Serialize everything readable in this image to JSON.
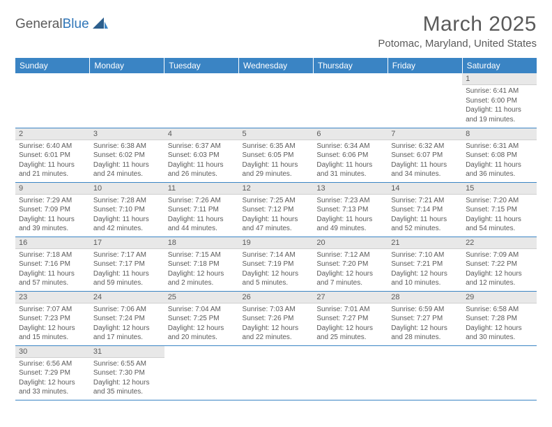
{
  "logo": {
    "text1": "General",
    "text2": "Blue"
  },
  "title": "March 2025",
  "location": "Potomac, Maryland, United States",
  "colors": {
    "header_bg": "#3a84c4",
    "header_text": "#ffffff",
    "daynum_bg": "#e8e8e8",
    "border": "#3a84c4",
    "text": "#5a5a5a",
    "logo_blue": "#3076b8"
  },
  "daynames": [
    "Sunday",
    "Monday",
    "Tuesday",
    "Wednesday",
    "Thursday",
    "Friday",
    "Saturday"
  ],
  "weeks": [
    [
      null,
      null,
      null,
      null,
      null,
      null,
      {
        "n": "1",
        "sunrise": "6:41 AM",
        "sunset": "6:00 PM",
        "day": "11 hours and 19 minutes."
      }
    ],
    [
      {
        "n": "2",
        "sunrise": "6:40 AM",
        "sunset": "6:01 PM",
        "day": "11 hours and 21 minutes."
      },
      {
        "n": "3",
        "sunrise": "6:38 AM",
        "sunset": "6:02 PM",
        "day": "11 hours and 24 minutes."
      },
      {
        "n": "4",
        "sunrise": "6:37 AM",
        "sunset": "6:03 PM",
        "day": "11 hours and 26 minutes."
      },
      {
        "n": "5",
        "sunrise": "6:35 AM",
        "sunset": "6:05 PM",
        "day": "11 hours and 29 minutes."
      },
      {
        "n": "6",
        "sunrise": "6:34 AM",
        "sunset": "6:06 PM",
        "day": "11 hours and 31 minutes."
      },
      {
        "n": "7",
        "sunrise": "6:32 AM",
        "sunset": "6:07 PM",
        "day": "11 hours and 34 minutes."
      },
      {
        "n": "8",
        "sunrise": "6:31 AM",
        "sunset": "6:08 PM",
        "day": "11 hours and 36 minutes."
      }
    ],
    [
      {
        "n": "9",
        "sunrise": "7:29 AM",
        "sunset": "7:09 PM",
        "day": "11 hours and 39 minutes."
      },
      {
        "n": "10",
        "sunrise": "7:28 AM",
        "sunset": "7:10 PM",
        "day": "11 hours and 42 minutes."
      },
      {
        "n": "11",
        "sunrise": "7:26 AM",
        "sunset": "7:11 PM",
        "day": "11 hours and 44 minutes."
      },
      {
        "n": "12",
        "sunrise": "7:25 AM",
        "sunset": "7:12 PM",
        "day": "11 hours and 47 minutes."
      },
      {
        "n": "13",
        "sunrise": "7:23 AM",
        "sunset": "7:13 PM",
        "day": "11 hours and 49 minutes."
      },
      {
        "n": "14",
        "sunrise": "7:21 AM",
        "sunset": "7:14 PM",
        "day": "11 hours and 52 minutes."
      },
      {
        "n": "15",
        "sunrise": "7:20 AM",
        "sunset": "7:15 PM",
        "day": "11 hours and 54 minutes."
      }
    ],
    [
      {
        "n": "16",
        "sunrise": "7:18 AM",
        "sunset": "7:16 PM",
        "day": "11 hours and 57 minutes."
      },
      {
        "n": "17",
        "sunrise": "7:17 AM",
        "sunset": "7:17 PM",
        "day": "11 hours and 59 minutes."
      },
      {
        "n": "18",
        "sunrise": "7:15 AM",
        "sunset": "7:18 PM",
        "day": "12 hours and 2 minutes."
      },
      {
        "n": "19",
        "sunrise": "7:14 AM",
        "sunset": "7:19 PM",
        "day": "12 hours and 5 minutes."
      },
      {
        "n": "20",
        "sunrise": "7:12 AM",
        "sunset": "7:20 PM",
        "day": "12 hours and 7 minutes."
      },
      {
        "n": "21",
        "sunrise": "7:10 AM",
        "sunset": "7:21 PM",
        "day": "12 hours and 10 minutes."
      },
      {
        "n": "22",
        "sunrise": "7:09 AM",
        "sunset": "7:22 PM",
        "day": "12 hours and 12 minutes."
      }
    ],
    [
      {
        "n": "23",
        "sunrise": "7:07 AM",
        "sunset": "7:23 PM",
        "day": "12 hours and 15 minutes."
      },
      {
        "n": "24",
        "sunrise": "7:06 AM",
        "sunset": "7:24 PM",
        "day": "12 hours and 17 minutes."
      },
      {
        "n": "25",
        "sunrise": "7:04 AM",
        "sunset": "7:25 PM",
        "day": "12 hours and 20 minutes."
      },
      {
        "n": "26",
        "sunrise": "7:03 AM",
        "sunset": "7:26 PM",
        "day": "12 hours and 22 minutes."
      },
      {
        "n": "27",
        "sunrise": "7:01 AM",
        "sunset": "7:27 PM",
        "day": "12 hours and 25 minutes."
      },
      {
        "n": "28",
        "sunrise": "6:59 AM",
        "sunset": "7:27 PM",
        "day": "12 hours and 28 minutes."
      },
      {
        "n": "29",
        "sunrise": "6:58 AM",
        "sunset": "7:28 PM",
        "day": "12 hours and 30 minutes."
      }
    ],
    [
      {
        "n": "30",
        "sunrise": "6:56 AM",
        "sunset": "7:29 PM",
        "day": "12 hours and 33 minutes."
      },
      {
        "n": "31",
        "sunrise": "6:55 AM",
        "sunset": "7:30 PM",
        "day": "12 hours and 35 minutes."
      },
      null,
      null,
      null,
      null,
      null
    ]
  ],
  "labels": {
    "sunrise": "Sunrise: ",
    "sunset": "Sunset: ",
    "daylight": "Daylight: "
  }
}
